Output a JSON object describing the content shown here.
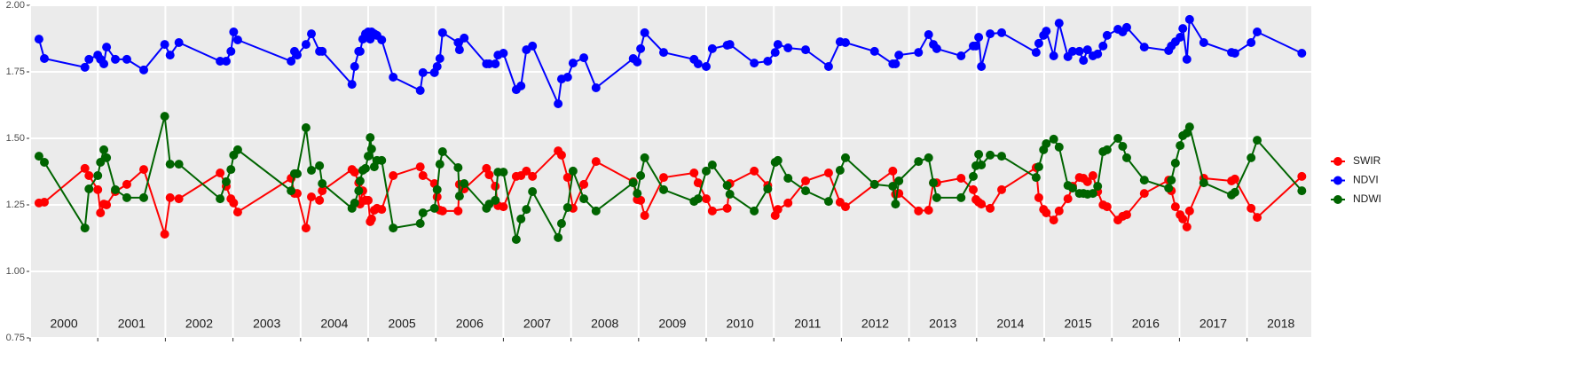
{
  "chart_data": {
    "type": "line",
    "x": [
      2000.13,
      2000.21,
      2000.81,
      2000.87,
      2001.0,
      2001.04,
      2001.09,
      2001.13,
      2001.26,
      2001.43,
      2001.68,
      2001.99,
      2002.07,
      2002.2,
      2002.81,
      2002.9,
      2002.97,
      2003.01,
      2003.07,
      2003.86,
      2003.91,
      2003.95,
      2004.08,
      2004.16,
      2004.28,
      2004.32,
      2004.76,
      2004.8,
      2004.86,
      2004.88,
      2004.92,
      2004.96,
      2005.0,
      2005.03,
      2005.05,
      2005.09,
      2005.13,
      2005.2,
      2005.37,
      2005.77,
      2005.81,
      2005.98,
      2006.02,
      2006.06,
      2006.1,
      2006.33,
      2006.35,
      2006.42,
      2006.75,
      2006.79,
      2006.88,
      2006.92,
      2007.0,
      2007.19,
      2007.26,
      2007.34,
      2007.43,
      2007.81,
      2007.86,
      2007.95,
      2008.03,
      2008.19,
      2008.37,
      2008.92,
      2008.98,
      2009.03,
      2009.09,
      2009.37,
      2009.82,
      2009.88,
      2010.0,
      2010.09,
      2010.31,
      2010.35,
      2010.71,
      2010.91,
      2011.02,
      2011.06,
      2011.21,
      2011.47,
      2011.81,
      2011.98,
      2012.06,
      2012.49,
      2012.76,
      2012.8,
      2012.85,
      2013.14,
      2013.29,
      2013.36,
      2013.41,
      2013.77,
      2013.95,
      2013.99,
      2014.03,
      2014.07,
      2014.2,
      2014.37,
      2014.88,
      2014.92,
      2014.99,
      2015.03,
      2015.14,
      2015.22,
      2015.35,
      2015.42,
      2015.52,
      2015.58,
      2015.64,
      2015.72,
      2015.79,
      2015.87,
      2015.93,
      2016.09,
      2016.16,
      2016.22,
      2016.48,
      2016.84,
      2016.88,
      2016.94,
      2017.01,
      2017.05,
      2017.11,
      2017.15,
      2017.36,
      2017.77,
      2017.82,
      2018.06,
      2018.15,
      2018.81
    ],
    "series": [
      {
        "name": "SWIR",
        "color": "#ff0000",
        "values": [
          1.257,
          1.26,
          1.387,
          1.36,
          1.307,
          1.22,
          1.253,
          1.25,
          1.3,
          1.327,
          1.383,
          1.14,
          1.277,
          1.273,
          1.37,
          1.32,
          1.273,
          1.257,
          1.223,
          1.35,
          1.293,
          1.293,
          1.163,
          1.28,
          1.267,
          1.303,
          1.383,
          1.373,
          1.333,
          1.253,
          1.303,
          1.267,
          1.267,
          1.187,
          1.197,
          1.23,
          1.237,
          1.233,
          1.36,
          1.393,
          1.36,
          1.33,
          1.28,
          1.23,
          1.227,
          1.227,
          1.327,
          1.31,
          1.387,
          1.363,
          1.32,
          1.247,
          1.243,
          1.357,
          1.36,
          1.377,
          1.357,
          1.453,
          1.437,
          1.353,
          1.237,
          1.327,
          1.413,
          1.337,
          1.27,
          1.267,
          1.21,
          1.353,
          1.37,
          1.333,
          1.273,
          1.227,
          1.237,
          1.33,
          1.377,
          1.323,
          1.21,
          1.233,
          1.257,
          1.34,
          1.37,
          1.26,
          1.243,
          1.327,
          1.377,
          1.29,
          1.293,
          1.227,
          1.23,
          1.333,
          1.333,
          1.35,
          1.307,
          1.27,
          1.26,
          1.253,
          1.237,
          1.307,
          1.39,
          1.277,
          1.233,
          1.22,
          1.193,
          1.227,
          1.273,
          1.32,
          1.353,
          1.35,
          1.337,
          1.36,
          1.3,
          1.25,
          1.243,
          1.193,
          1.207,
          1.213,
          1.293,
          1.343,
          1.303,
          1.243,
          1.213,
          1.197,
          1.167,
          1.227,
          1.35,
          1.34,
          1.347,
          1.237,
          1.203,
          1.357
        ]
      },
      {
        "name": "NDVI",
        "color": "#0000ff",
        "values": [
          1.873,
          1.8,
          1.767,
          1.797,
          1.813,
          1.797,
          1.78,
          1.843,
          1.797,
          1.797,
          1.757,
          1.853,
          1.813,
          1.86,
          1.79,
          1.79,
          1.827,
          1.9,
          1.87,
          1.79,
          1.827,
          1.813,
          1.853,
          1.893,
          1.827,
          1.827,
          1.703,
          1.77,
          1.827,
          1.827,
          1.873,
          1.893,
          1.9,
          1.873,
          1.9,
          1.893,
          1.887,
          1.87,
          1.73,
          1.68,
          1.747,
          1.747,
          1.77,
          1.8,
          1.897,
          1.86,
          1.833,
          1.877,
          1.78,
          1.78,
          1.78,
          1.813,
          1.82,
          1.683,
          1.697,
          1.833,
          1.847,
          1.63,
          1.723,
          1.73,
          1.783,
          1.803,
          1.69,
          1.8,
          1.787,
          1.837,
          1.897,
          1.823,
          1.797,
          1.78,
          1.77,
          1.837,
          1.85,
          1.853,
          1.783,
          1.79,
          1.823,
          1.853,
          1.84,
          1.833,
          1.77,
          1.863,
          1.86,
          1.827,
          1.78,
          1.78,
          1.813,
          1.823,
          1.89,
          1.853,
          1.837,
          1.81,
          1.847,
          1.847,
          1.88,
          1.77,
          1.893,
          1.897,
          1.823,
          1.857,
          1.887,
          1.903,
          1.81,
          1.933,
          1.807,
          1.827,
          1.827,
          1.793,
          1.833,
          1.81,
          1.817,
          1.847,
          1.887,
          1.91,
          1.9,
          1.917,
          1.843,
          1.83,
          1.847,
          1.863,
          1.88,
          1.913,
          1.797,
          1.947,
          1.86,
          1.823,
          1.82,
          1.86,
          1.9,
          1.82
        ]
      },
      {
        "name": "NDWI",
        "color": "#006400",
        "values": [
          1.433,
          1.41,
          1.163,
          1.31,
          1.36,
          1.41,
          1.457,
          1.427,
          1.307,
          1.277,
          1.277,
          1.583,
          1.403,
          1.403,
          1.273,
          1.337,
          1.383,
          1.437,
          1.457,
          1.303,
          1.367,
          1.367,
          1.54,
          1.38,
          1.397,
          1.33,
          1.237,
          1.257,
          1.303,
          1.34,
          1.38,
          1.387,
          1.433,
          1.503,
          1.46,
          1.393,
          1.417,
          1.417,
          1.163,
          1.18,
          1.22,
          1.237,
          1.307,
          1.403,
          1.45,
          1.39,
          1.283,
          1.33,
          1.237,
          1.253,
          1.267,
          1.373,
          1.373,
          1.12,
          1.197,
          1.233,
          1.3,
          1.127,
          1.18,
          1.24,
          1.377,
          1.273,
          1.227,
          1.333,
          1.293,
          1.36,
          1.427,
          1.307,
          1.263,
          1.273,
          1.377,
          1.4,
          1.323,
          1.29,
          1.227,
          1.31,
          1.41,
          1.417,
          1.35,
          1.303,
          1.263,
          1.38,
          1.427,
          1.327,
          1.32,
          1.253,
          1.34,
          1.413,
          1.427,
          1.333,
          1.277,
          1.277,
          1.357,
          1.397,
          1.44,
          1.4,
          1.437,
          1.433,
          1.353,
          1.393,
          1.457,
          1.48,
          1.497,
          1.467,
          1.323,
          1.313,
          1.293,
          1.293,
          1.29,
          1.293,
          1.32,
          1.45,
          1.457,
          1.5,
          1.47,
          1.427,
          1.343,
          1.313,
          1.343,
          1.407,
          1.473,
          1.51,
          1.52,
          1.543,
          1.333,
          1.287,
          1.297,
          1.427,
          1.493,
          1.303
        ]
      }
    ],
    "xlim": [
      2000,
      2018.95
    ],
    "xticks": [
      2000,
      2001,
      2002,
      2003,
      2004,
      2005,
      2006,
      2007,
      2008,
      2009,
      2010,
      2011,
      2012,
      2013,
      2014,
      2015,
      2016,
      2017,
      2018
    ],
    "ylim": [
      0.75,
      2.0
    ],
    "yticks": [
      0.75,
      {
        "value": 1,
        "label": "1.00"
      },
      1.25,
      {
        "value": 1.5,
        "label": "1.50"
      },
      1.75,
      {
        "value": 2,
        "label": "2.00"
      }
    ],
    "grid": true,
    "legend": "right"
  }
}
